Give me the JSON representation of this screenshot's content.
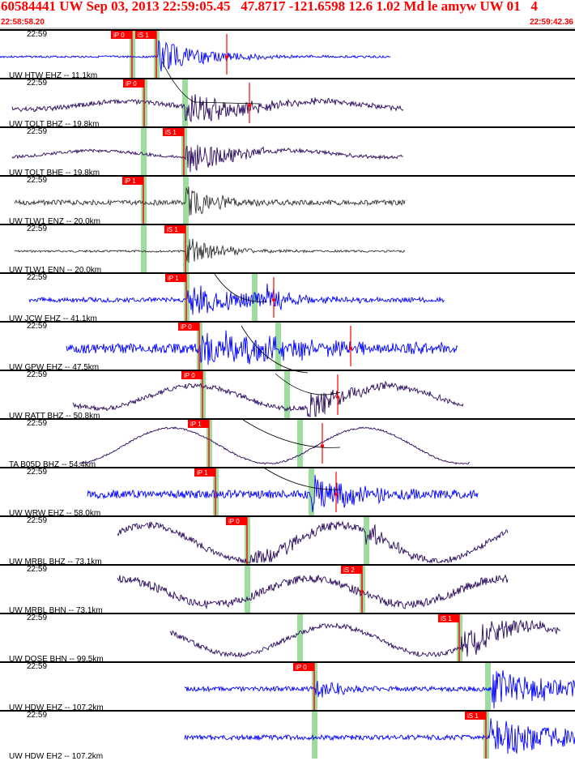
{
  "header": {
    "title": "60584441 UW Sep 03, 2013 22:59:05.45   47.8717 -121.6598 12.6 1.02 Md le amyw UW 01   4",
    "start_time": "22:58:58.20",
    "end_time": "22:59:42.36"
  },
  "colors": {
    "header_text": "#ff0000",
    "trace_blue": "#0000ff",
    "trace_purple": "#2a0a5e",
    "trace_dark": "#333333",
    "pick_box": "#ff0000",
    "theoretical_band": "#9fdc9f",
    "travel_curve": "#000000"
  },
  "panels": [
    {
      "time": "22:59",
      "label": "UW HTW EHZ -- 11.1km",
      "picks": [
        "iP 0",
        "iS 1"
      ]
    },
    {
      "time": "22:59",
      "label": "UW TOLT BHZ -- 19.8km",
      "picks": [
        "iP 0"
      ]
    },
    {
      "time": "22:59",
      "label": "UW TOLT BHE -- 19.8km",
      "picks": [
        "iS 1"
      ]
    },
    {
      "time": "22:59",
      "label": "UW TLW1 ENZ -- 20.0km",
      "picks": [
        "iP 1"
      ]
    },
    {
      "time": "22:59",
      "label": "UW TLW1 ENN -- 20.0km",
      "picks": [
        "iS 1"
      ]
    },
    {
      "time": "22:59",
      "label": "UW JCW EHZ -- 41.1km",
      "picks": [
        "iP 1"
      ]
    },
    {
      "time": "22:59",
      "label": "UW GPW EHZ -- 47.5km",
      "picks": [
        "iP 0"
      ]
    },
    {
      "time": "22:59",
      "label": "UW RATT BHZ -- 50.8km",
      "picks": [
        "iP 0"
      ]
    },
    {
      "time": "22:59",
      "label": "TA B05D BHZ -- 54.4km",
      "picks": [
        "iP 1"
      ]
    },
    {
      "time": "22:59",
      "label": "UW WRW EHZ -- 58.0km",
      "picks": [
        "iP 1"
      ]
    },
    {
      "time": "22:59",
      "label": "UW MRBL BHZ -- 73.1km",
      "picks": [
        "iP 0"
      ]
    },
    {
      "time": "22:59",
      "label": "UW MRBL BHN -- 73.1km",
      "picks": [
        "iS 2"
      ]
    },
    {
      "time": "22:59",
      "label": "UW DOSE BHN -- 99.5km",
      "picks": [
        "iS 1"
      ]
    },
    {
      "time": "22:59",
      "label": "UW HDW EHZ -- 107.2km",
      "picks": [
        "iP 0"
      ]
    },
    {
      "time": "22:59",
      "label": "UW HDW EH2 -- 107.2km",
      "picks": [
        "iS 1"
      ]
    }
  ]
}
